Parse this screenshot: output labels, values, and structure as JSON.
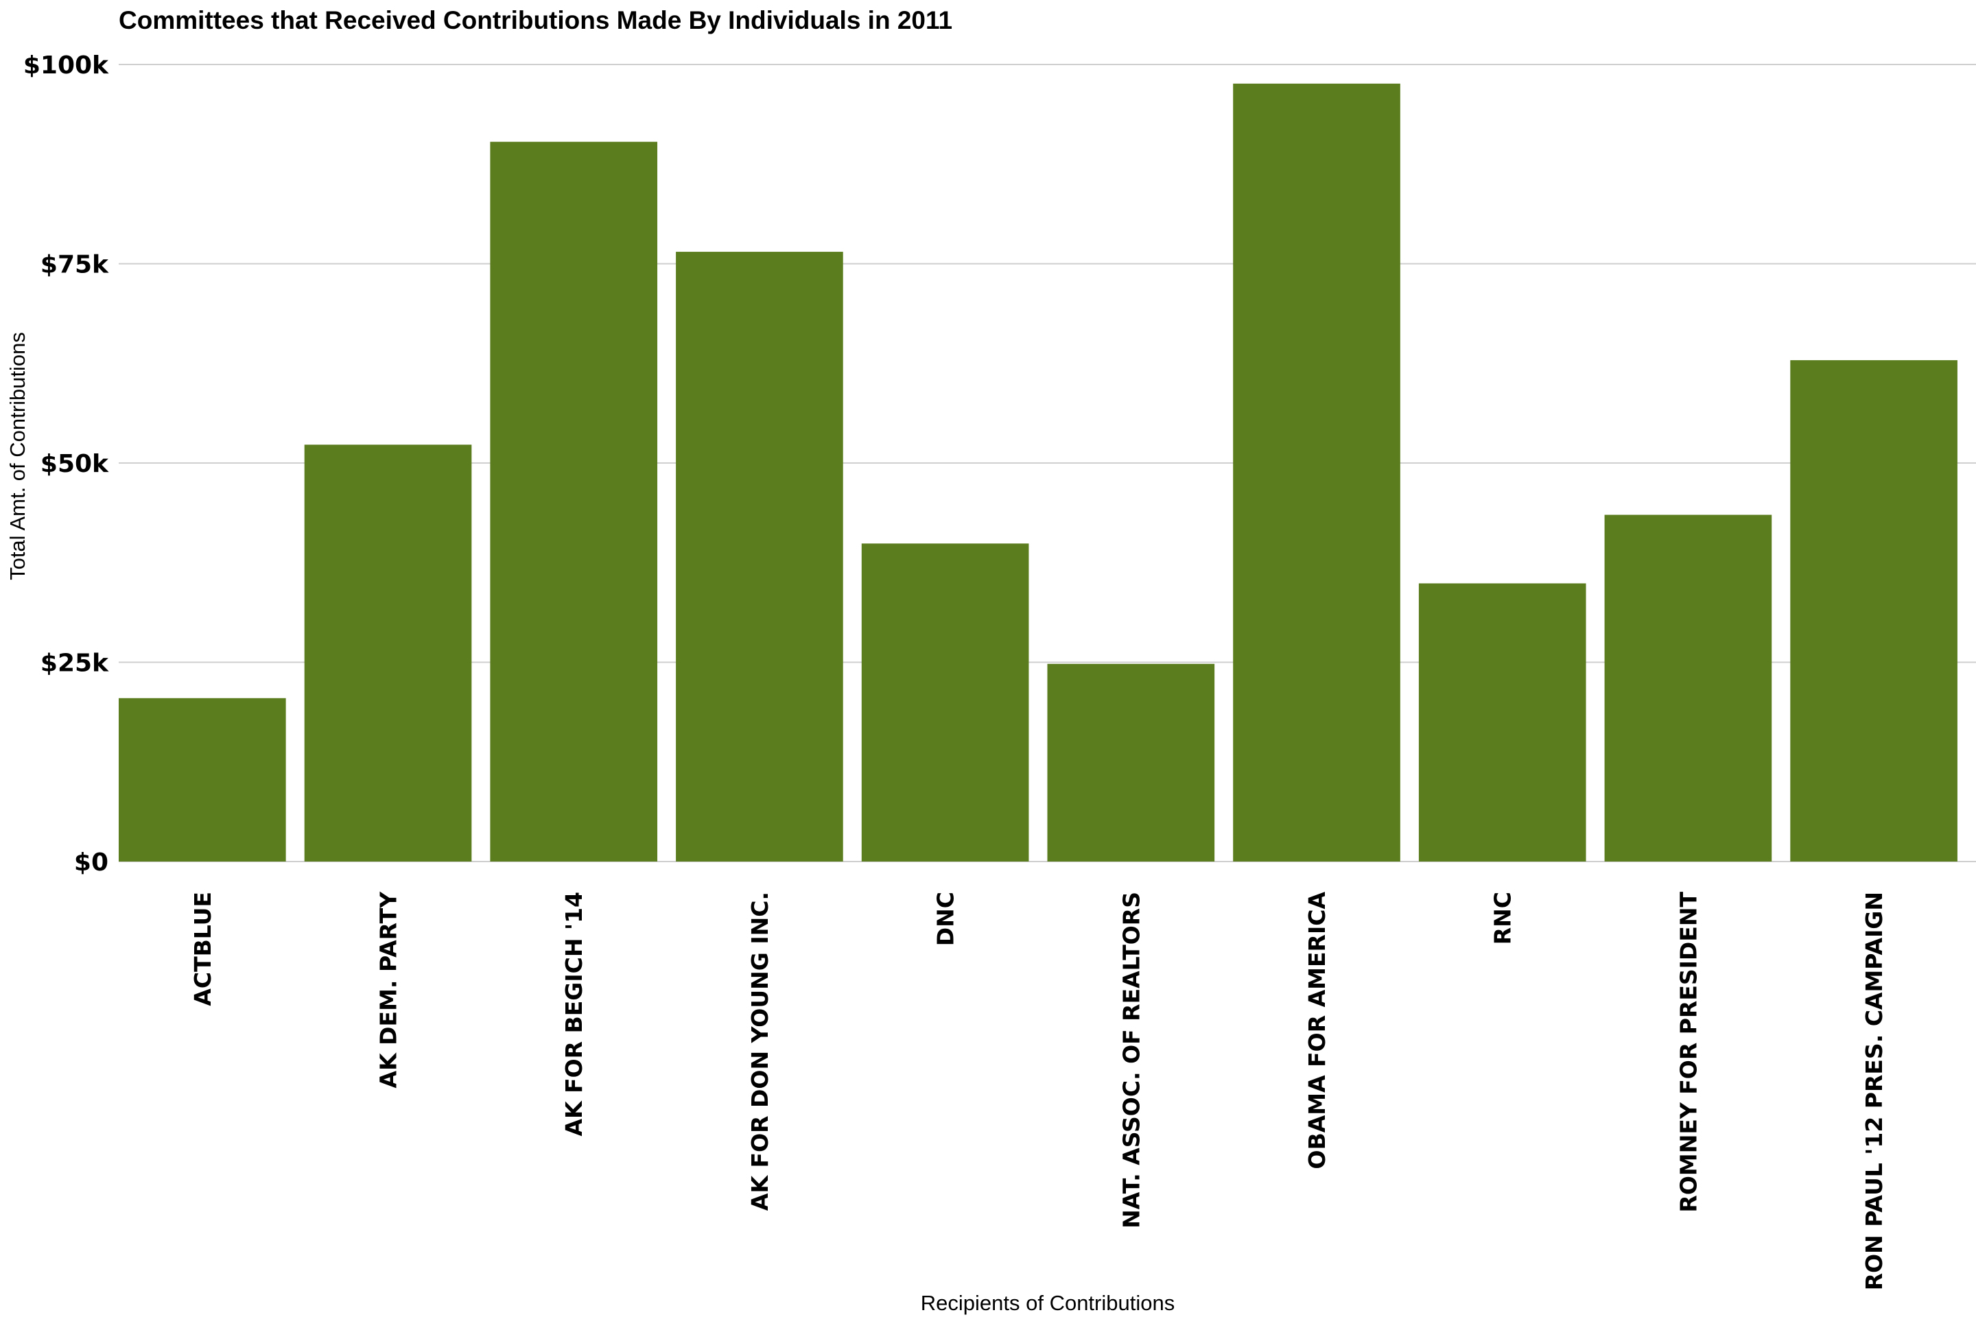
{
  "chart_data": {
    "type": "bar",
    "title": "Committees that Received Contributions Made By Individuals in 2011",
    "xlabel": "Recipients of Contributions",
    "ylabel": "Total Amt. of Contributions",
    "ylim": [
      0,
      100000
    ],
    "grid": true,
    "legend": "none",
    "bar_color": "#5b7d1e",
    "yticks": [
      0,
      25000,
      50000,
      75000,
      100000
    ],
    "ytick_labels": [
      "$0",
      "$25k",
      "$50k",
      "$75k",
      "$100k"
    ],
    "categories": [
      "ACTBLUE",
      "AK DEM. PARTY",
      "AK FOR BEGICH '14",
      "AK FOR DON YOUNG INC.",
      "DNC",
      "NAT. ASSOC. OF REALTORS",
      "OBAMA FOR AMERICA",
      "RNC",
      "ROMNEY FOR PRESIDENT",
      "RON PAUL '12 PRES. CAMPAIGN"
    ],
    "values": [
      20500,
      52300,
      90300,
      76500,
      39900,
      24800,
      97600,
      34900,
      43500,
      62900
    ]
  }
}
